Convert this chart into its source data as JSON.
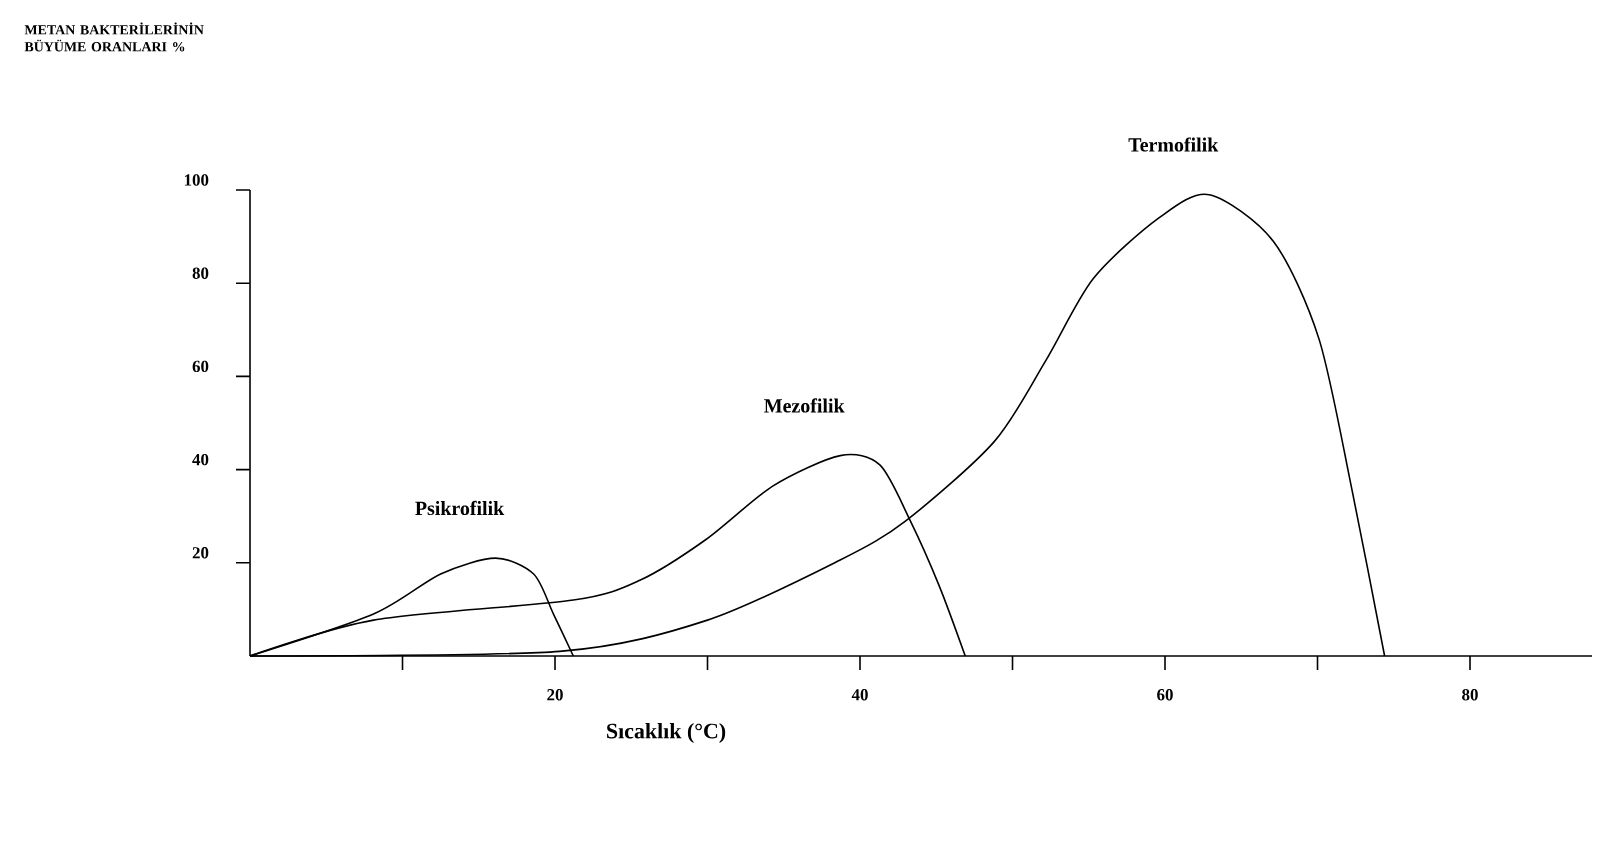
{
  "chart_data": {
    "type": "line",
    "title": "METAN BAKTERİLERİNİN BÜYÜME ORANLARI %",
    "xlabel": "Sıcaklık (°C)",
    "xlim": [
      0,
      88
    ],
    "ylim": [
      0,
      100
    ],
    "xticks": [
      {
        "value": 10,
        "label": null
      },
      20,
      {
        "value": 30,
        "label": null
      },
      40,
      {
        "value": 50,
        "label": null
      },
      60,
      {
        "value": 70,
        "label": null
      },
      80
    ],
    "yticks": [
      20,
      40,
      60,
      80,
      100
    ],
    "marker": "none",
    "line_style": "solid",
    "series": [
      {
        "name": "Psikrofilik",
        "color": "#000000",
        "x": [
          0,
          8.1,
          12.5,
          16.1,
          18.6,
          19.9,
          21.2
        ],
        "values": [
          0,
          9,
          17.6,
          21,
          17.6,
          9,
          0
        ]
      },
      {
        "name": "Mezofilik",
        "color": "#000000",
        "x": [
          0,
          8.1,
          21.2,
          25.6,
          29.9,
          34.3,
          38.7,
          41.3,
          43.3,
          45.2,
          46.9
        ],
        "values": [
          0,
          7.7,
          12,
          16.3,
          25,
          36.5,
          43,
          41,
          29,
          15,
          0
        ]
      },
      {
        "name": "Termofilik",
        "color": "#000000",
        "x": [
          0,
          20.3,
          30,
          38.7,
          43,
          48.8,
          52.2,
          55.3,
          59.6,
          62.9,
          67.1,
          70.1,
          72.3,
          74.4
        ],
        "values": [
          0,
          1,
          7.7,
          20.6,
          29,
          46,
          63.5,
          81,
          94,
          99,
          89,
          68,
          35,
          0
        ]
      }
    ]
  }
}
